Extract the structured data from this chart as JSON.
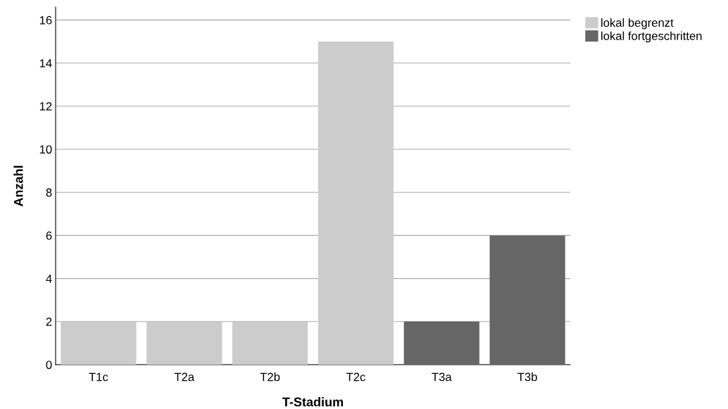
{
  "chart_data": {
    "type": "bar",
    "xlabel": "T-Stadium",
    "ylabel": "Anzahl",
    "categories": [
      "T1c",
      "T2a",
      "T2b",
      "T2c",
      "T3a",
      "T3b"
    ],
    "series": [
      {
        "name": "lokal begrenzt",
        "color": "#cccccc",
        "values": [
          2,
          2,
          2,
          15,
          null,
          null
        ]
      },
      {
        "name": "lokal fortgeschritten",
        "color": "#666666",
        "values": [
          null,
          null,
          null,
          null,
          2,
          6
        ]
      }
    ],
    "ylim": [
      0,
      16.6
    ],
    "yticks": [
      0,
      2,
      4,
      6,
      8,
      10,
      12,
      14,
      16
    ],
    "grid": "y",
    "legend": "top right"
  }
}
